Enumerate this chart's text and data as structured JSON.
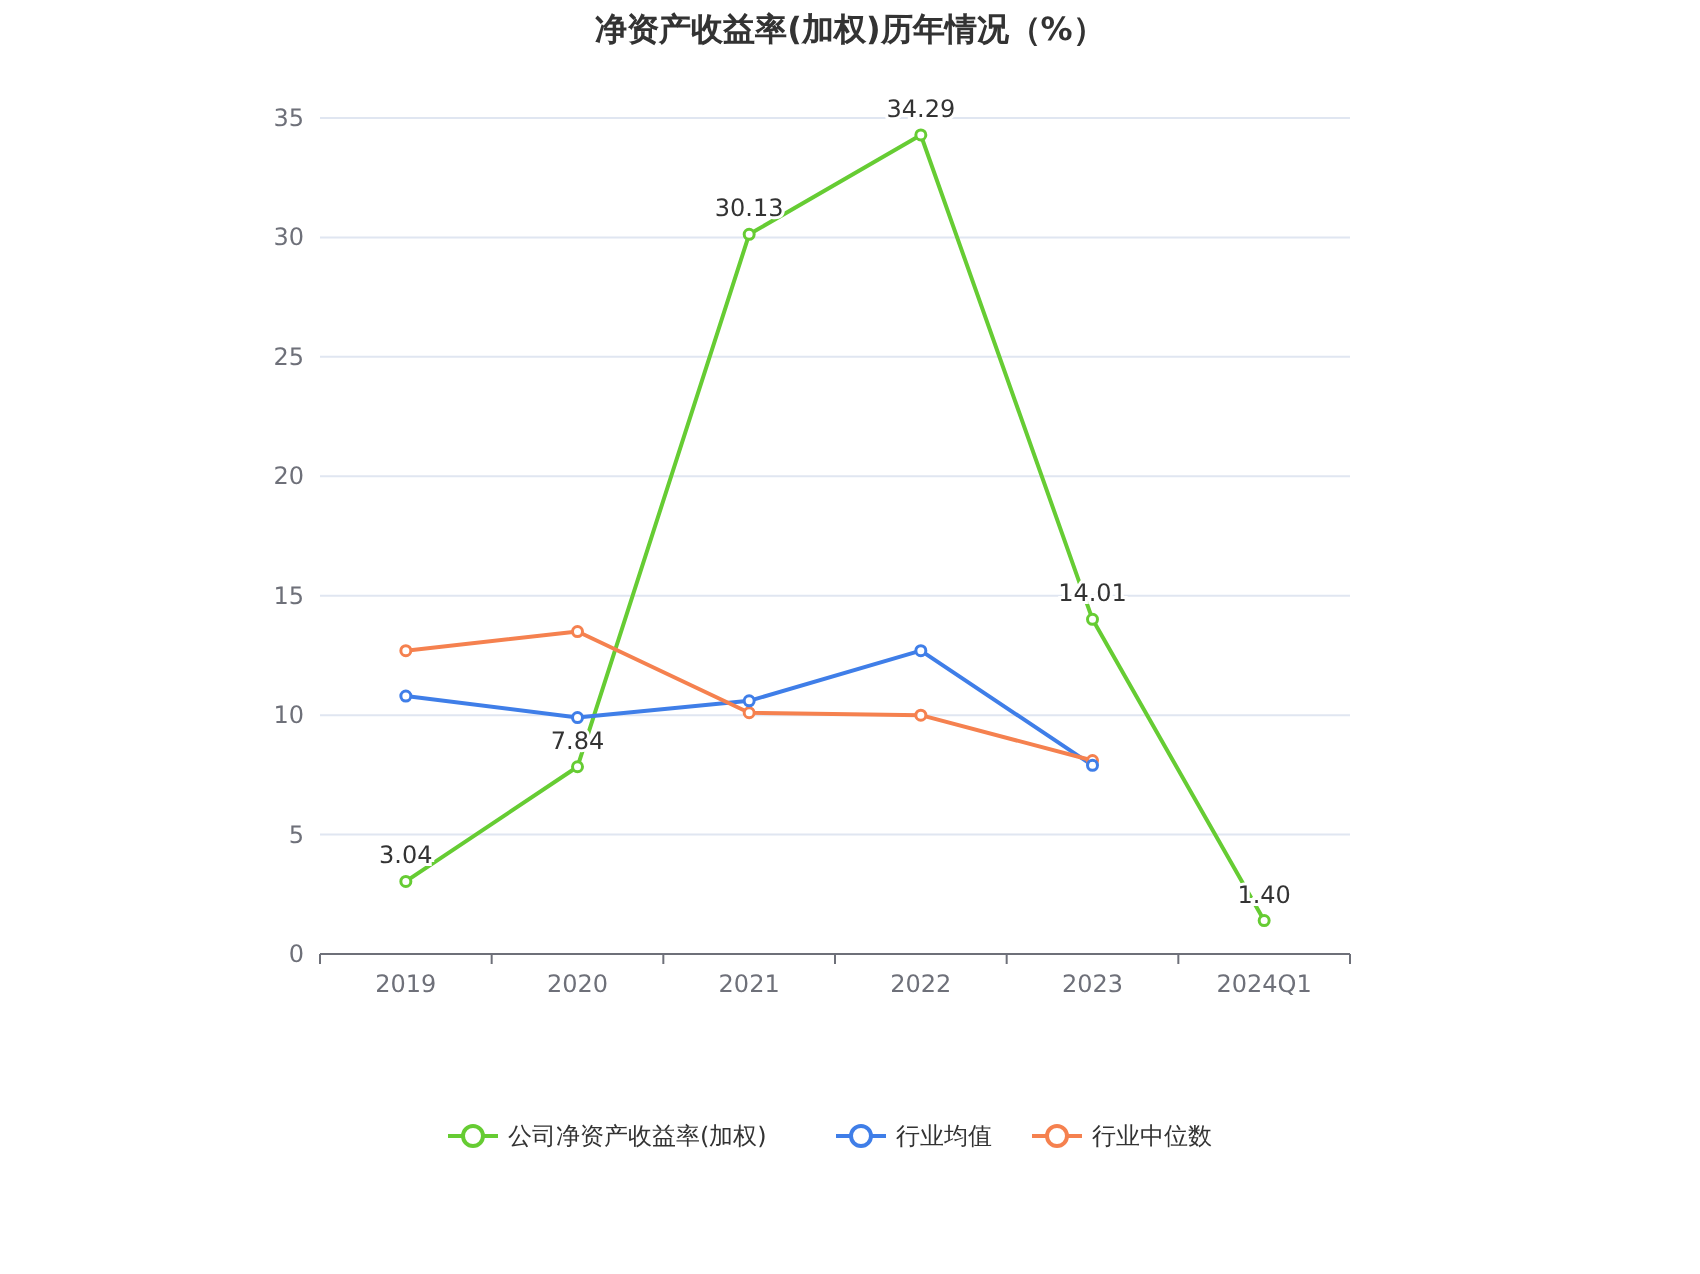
{
  "chart_data": {
    "type": "line",
    "title": "净资产收益率(加权)历年情况（%）",
    "categories": [
      "2019",
      "2020",
      "2021",
      "2022",
      "2023",
      "2024Q1"
    ],
    "series": [
      {
        "name": "公司净资产收益率(加权)",
        "color": "#66cc33",
        "values": [
          3.04,
          7.84,
          30.13,
          34.29,
          14.01,
          1.4
        ],
        "value_labels": [
          "3.04",
          "7.84",
          "30.13",
          "34.29",
          "14.01",
          "1.40"
        ]
      },
      {
        "name": "行业均值",
        "color": "#3f7ee8",
        "values": [
          10.8,
          9.9,
          10.6,
          12.7,
          7.9,
          null
        ]
      },
      {
        "name": "行业中位数",
        "color": "#f5814f",
        "values": [
          12.7,
          13.5,
          10.1,
          10.0,
          8.1,
          null
        ]
      }
    ],
    "ylim": [
      0,
      35
    ],
    "yticks": [
      0,
      5,
      10,
      15,
      20,
      25,
      30,
      35
    ],
    "grid": "y",
    "legend": "bottom",
    "marker": "circle",
    "line_style": "solid"
  }
}
